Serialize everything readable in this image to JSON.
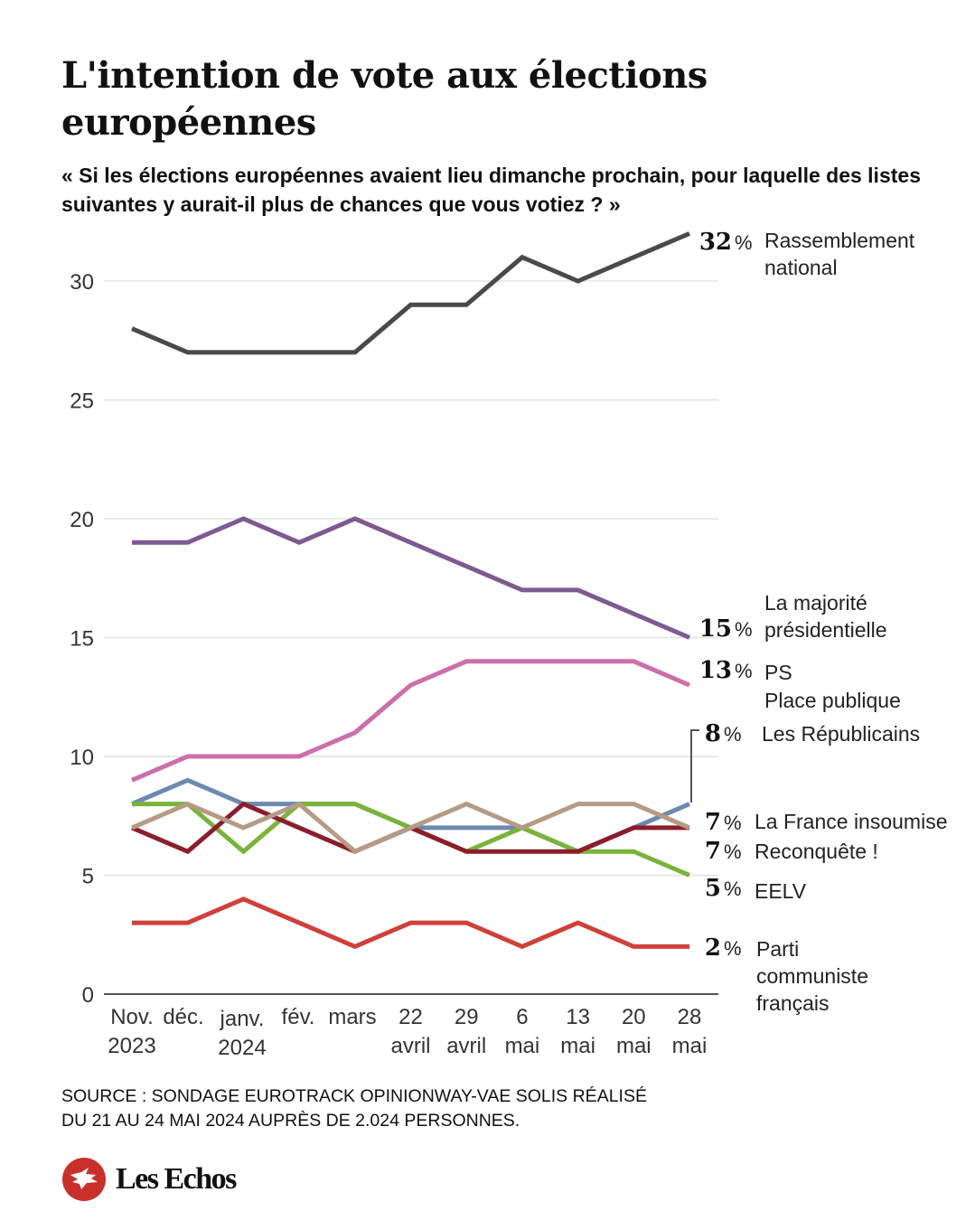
{
  "header": {
    "title": "L'intention de vote aux élections européennes",
    "subtitle": "« Si les élections européennes avaient lieu dimanche prochain, pour laquelle des listes suivantes y aurait-il plus de chances que vous votiez ? »"
  },
  "chart_data": {
    "type": "line",
    "title": "L'intention de vote aux élections européennes",
    "subtitle": "« Si les élections européennes avaient lieu dimanche prochain, pour laquelle des listes suivantes y aurait-il plus de chances que vous votiez ? »",
    "xlabel": "",
    "ylabel": "",
    "ylim": [
      0,
      32
    ],
    "yticks": [
      0,
      5,
      10,
      15,
      20,
      25,
      30
    ],
    "grid": true,
    "legend": "right-end labels",
    "categories": [
      [
        "Nov.",
        "2023"
      ],
      [
        "déc.",
        ""
      ],
      [
        "janv.",
        "2024"
      ],
      [
        "fév.",
        ""
      ],
      [
        "mars",
        ""
      ],
      [
        "22",
        "avril"
      ],
      [
        "29",
        "avril"
      ],
      [
        "6",
        "mai"
      ],
      [
        "13",
        "mai"
      ],
      [
        "20",
        "mai"
      ],
      [
        "28",
        "mai"
      ]
    ],
    "series": [
      {
        "name": "Rassemblement national",
        "label_lines": [
          "Rassemblement",
          "national"
        ],
        "color": "#4a4a4a",
        "final": "32",
        "values": [
          28,
          27,
          27,
          27,
          27,
          29,
          29,
          31,
          30,
          31,
          32
        ]
      },
      {
        "name": "La majorité présidentielle",
        "label_lines": [
          "La majorité",
          "présidentielle"
        ],
        "color": "#7e5a91",
        "final": "15",
        "values": [
          19,
          19,
          20,
          19,
          20,
          19,
          18,
          17,
          17,
          16,
          15
        ]
      },
      {
        "name": "PS Place publique",
        "label_lines": [
          "PS",
          "Place publique"
        ],
        "color": "#cc6faa",
        "final": "13",
        "values": [
          9,
          10,
          10,
          10,
          11,
          13,
          14,
          14,
          14,
          14,
          13
        ]
      },
      {
        "name": "Les Républicains",
        "label_lines": [
          "Les Républicains"
        ],
        "color": "#6e88b0",
        "final": "8",
        "values": [
          8,
          9,
          8,
          8,
          8,
          7,
          7,
          7,
          6,
          7,
          8
        ]
      },
      {
        "name": "La France insoumise",
        "label_lines": [
          "La France insoumise"
        ],
        "color": "#b59a85",
        "final": "7",
        "values": [
          7,
          8,
          7,
          8,
          6,
          7,
          8,
          7,
          8,
          8,
          7
        ]
      },
      {
        "name": "Reconquête !",
        "label_lines": [
          "Reconquête !"
        ],
        "color": "#8b1e2c",
        "final": "7",
        "values": [
          7,
          6,
          8,
          7,
          6,
          7,
          6,
          6,
          6,
          7,
          7
        ]
      },
      {
        "name": "EELV",
        "label_lines": [
          "EELV"
        ],
        "color": "#7ab33a",
        "final": "5",
        "values": [
          8,
          8,
          6,
          8,
          8,
          7,
          6,
          7,
          6,
          6,
          5
        ]
      },
      {
        "name": "Parti communiste français",
        "label_lines": [
          "Parti",
          "communiste",
          "français"
        ],
        "color": "#d0403a",
        "final": "2",
        "values": [
          3,
          3,
          4,
          3,
          2,
          3,
          3,
          2,
          3,
          2,
          2
        ]
      }
    ],
    "percent_sign": "%"
  },
  "footer": {
    "source_line1": "SOURCE : SONDAGE EUROTRACK OPINIONWAY-VAE SOLIS RÉALISÉ",
    "source_line2": "DU  21 AU 24 MAI 2024 AUPRÈS DE 2.024 PERSONNES.",
    "logo_text": "Les Echos",
    "logo_color": "#c8312b"
  }
}
